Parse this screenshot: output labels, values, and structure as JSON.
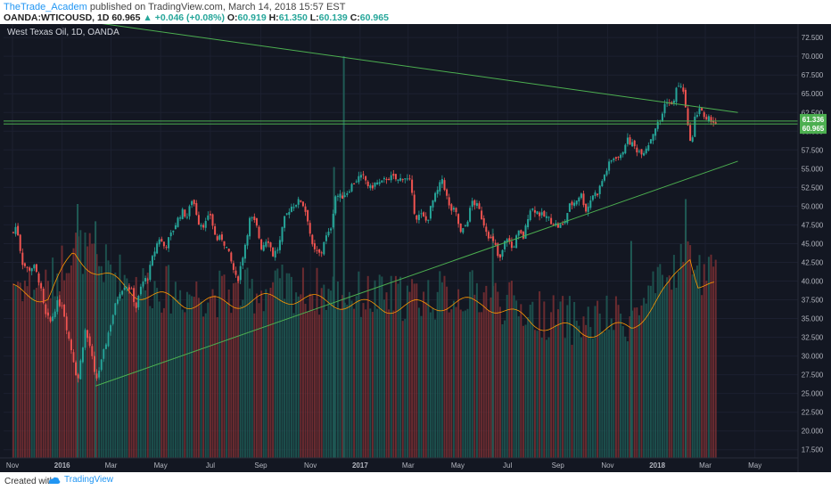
{
  "header": {
    "author": "TheTrade_Academ",
    "published_text": " published on TradingView.com, March 14, 2018 15:57 EST",
    "symbol_line": "OANDA:WTICOUSD, 1D",
    "last": "60.965",
    "change": "+0.046 (+0.08%)",
    "o_label": "O:",
    "o": "60.919",
    "h_label": "H:",
    "h": "61.350",
    "l_label": "L:",
    "l": "60.139",
    "c_label": "C:",
    "c": "60.965"
  },
  "footer": {
    "created": "Created with",
    "brand": "TradingView"
  },
  "colors": {
    "bg": "#131722",
    "up": "#26a69a",
    "down": "#ef5350",
    "line": "#4caf50",
    "ma": "#ff9800",
    "price_tag": "#4caf50"
  },
  "chart_data": {
    "type": "candlestick",
    "title": "West Texas Oil, 1D, OANDA",
    "y_ticks": [
      "72.500",
      "70.000",
      "67.500",
      "65.000",
      "62.500",
      "60.000",
      "57.500",
      "55.000",
      "52.500",
      "50.000",
      "47.500",
      "45.000",
      "42.500",
      "40.000",
      "37.500",
      "35.000",
      "32.500",
      "30.000",
      "27.500",
      "25.000",
      "22.500",
      "20.000",
      "17.500"
    ],
    "price_ylim": [
      16.4,
      74.3
    ],
    "x_ticks": [
      "Nov",
      "2016",
      "Mar",
      "May",
      "Jul",
      "Sep",
      "Nov",
      "2017",
      "Mar",
      "May",
      "Jul",
      "Sep",
      "Nov",
      "2018",
      "Mar",
      "May"
    ],
    "price_tags": [
      "61.336",
      "60.965"
    ],
    "trendlines": [
      {
        "name": "",
        "from": [
          "2015-10-01",
          76.5
        ],
        "to": [
          "2018-04-10",
          62.5
        ]
      },
      {
        "name": "",
        "from": [
          "2016-02-11",
          26.0
        ],
        "to": [
          "2018-04-10",
          56.0
        ]
      }
    ],
    "horizontal_lines": [
      61.35,
      60.97
    ],
    "close_path": [
      [
        "2015-11-02",
        46.5
      ],
      [
        "2015-11-06",
        47.5
      ],
      [
        "2015-11-13",
        42.5
      ],
      [
        "2015-11-20",
        41.5
      ],
      [
        "2015-11-27",
        42.0
      ],
      [
        "2015-12-04",
        40.0
      ],
      [
        "2015-12-11",
        35.5
      ],
      [
        "2015-12-18",
        34.5
      ],
      [
        "2015-12-25",
        37.0
      ],
      [
        "2016-01-01",
        37.0
      ],
      [
        "2016-01-08",
        33.0
      ],
      [
        "2016-01-15",
        29.5
      ],
      [
        "2016-01-20",
        26.5
      ],
      [
        "2016-01-29",
        33.5
      ],
      [
        "2016-02-05",
        31.0
      ],
      [
        "2016-02-11",
        26.5
      ],
      [
        "2016-02-19",
        29.5
      ],
      [
        "2016-02-26",
        32.8
      ],
      [
        "2016-03-04",
        35.8
      ],
      [
        "2016-03-11",
        38.5
      ],
      [
        "2016-03-18",
        39.5
      ],
      [
        "2016-03-25",
        39.0
      ],
      [
        "2016-04-01",
        36.5
      ],
      [
        "2016-04-08",
        39.7
      ],
      [
        "2016-04-15",
        40.5
      ],
      [
        "2016-04-22",
        43.5
      ],
      [
        "2016-04-29",
        45.8
      ],
      [
        "2016-05-06",
        44.5
      ],
      [
        "2016-05-13",
        46.0
      ],
      [
        "2016-05-20",
        47.8
      ],
      [
        "2016-05-27",
        49.3
      ],
      [
        "2016-06-03",
        48.6
      ],
      [
        "2016-06-09",
        51.2
      ],
      [
        "2016-06-17",
        47.8
      ],
      [
        "2016-06-24",
        47.5
      ],
      [
        "2016-07-01",
        48.9
      ],
      [
        "2016-07-08",
        45.5
      ],
      [
        "2016-07-15",
        45.8
      ],
      [
        "2016-07-22",
        44.2
      ],
      [
        "2016-07-29",
        41.7
      ],
      [
        "2016-08-03",
        39.8
      ],
      [
        "2016-08-12",
        44.5
      ],
      [
        "2016-08-19",
        48.5
      ],
      [
        "2016-08-26",
        47.6
      ],
      [
        "2016-09-02",
        44.4
      ],
      [
        "2016-09-09",
        45.9
      ],
      [
        "2016-09-16",
        43.5
      ],
      [
        "2016-09-23",
        44.5
      ],
      [
        "2016-09-30",
        48.2
      ],
      [
        "2016-10-07",
        49.8
      ],
      [
        "2016-10-14",
        50.4
      ],
      [
        "2016-10-21",
        50.8
      ],
      [
        "2016-10-28",
        48.7
      ],
      [
        "2016-11-04",
        44.1
      ],
      [
        "2016-11-14",
        43.5
      ],
      [
        "2016-11-18",
        45.6
      ],
      [
        "2016-11-25",
        46.5
      ],
      [
        "2016-12-02",
        51.5
      ],
      [
        "2016-12-09",
        51.2
      ],
      [
        "2016-12-16",
        51.9
      ],
      [
        "2016-12-23",
        53.0
      ],
      [
        "2016-12-30",
        53.8
      ],
      [
        "2017-01-06",
        53.8
      ],
      [
        "2017-01-13",
        52.3
      ],
      [
        "2017-01-20",
        53.1
      ],
      [
        "2017-01-27",
        53.0
      ],
      [
        "2017-02-03",
        53.8
      ],
      [
        "2017-02-10",
        53.8
      ],
      [
        "2017-02-17",
        53.4
      ],
      [
        "2017-02-24",
        54.0
      ],
      [
        "2017-03-03",
        53.2
      ],
      [
        "2017-03-10",
        48.5
      ],
      [
        "2017-03-17",
        48.8
      ],
      [
        "2017-03-24",
        47.9
      ],
      [
        "2017-03-31",
        50.6
      ],
      [
        "2017-04-07",
        52.2
      ],
      [
        "2017-04-12",
        53.7
      ],
      [
        "2017-04-21",
        49.6
      ],
      [
        "2017-04-28",
        49.3
      ],
      [
        "2017-05-05",
        46.2
      ],
      [
        "2017-05-12",
        47.8
      ],
      [
        "2017-05-19",
        50.7
      ],
      [
        "2017-05-26",
        49.8
      ],
      [
        "2017-06-02",
        47.7
      ],
      [
        "2017-06-09",
        45.8
      ],
      [
        "2017-06-16",
        44.7
      ],
      [
        "2017-06-21",
        42.5
      ],
      [
        "2017-06-30",
        46.0
      ],
      [
        "2017-07-07",
        44.2
      ],
      [
        "2017-07-14",
        46.5
      ],
      [
        "2017-07-21",
        45.8
      ],
      [
        "2017-07-28",
        49.7
      ],
      [
        "2017-08-04",
        49.5
      ],
      [
        "2017-08-11",
        48.8
      ],
      [
        "2017-08-18",
        48.5
      ],
      [
        "2017-08-25",
        47.9
      ],
      [
        "2017-09-01",
        47.3
      ],
      [
        "2017-09-08",
        47.5
      ],
      [
        "2017-09-15",
        50.0
      ],
      [
        "2017-09-22",
        50.6
      ],
      [
        "2017-09-29",
        51.7
      ],
      [
        "2017-10-06",
        49.3
      ],
      [
        "2017-10-13",
        51.5
      ],
      [
        "2017-10-20",
        51.8
      ],
      [
        "2017-10-27",
        53.9
      ],
      [
        "2017-11-03",
        55.6
      ],
      [
        "2017-11-10",
        56.7
      ],
      [
        "2017-11-17",
        56.5
      ],
      [
        "2017-11-24",
        58.9
      ],
      [
        "2017-12-01",
        58.3
      ],
      [
        "2017-12-08",
        57.4
      ],
      [
        "2017-12-15",
        57.3
      ],
      [
        "2017-12-22",
        58.5
      ],
      [
        "2017-12-29",
        60.4
      ],
      [
        "2018-01-05",
        61.5
      ],
      [
        "2018-01-12",
        64.3
      ],
      [
        "2018-01-19",
        63.3
      ],
      [
        "2018-01-26",
        66.2
      ],
      [
        "2018-02-02",
        65.5
      ],
      [
        "2018-02-09",
        59.2
      ],
      [
        "2018-02-14",
        59.0
      ],
      [
        "2018-02-16",
        61.6
      ],
      [
        "2018-02-23",
        63.5
      ],
      [
        "2018-03-01",
        61.0
      ],
      [
        "2018-03-07",
        61.8
      ],
      [
        "2018-03-14",
        60.97
      ]
    ],
    "volume": {
      "ylim": [
        14.7,
        32.3
      ],
      "path": [
        [
          "2015-11-01",
          21.5
        ],
        [
          "2015-12-15",
          21.2
        ],
        [
          "2016-01-15",
          23.0
        ],
        [
          "2016-02-15",
          22.2
        ],
        [
          "2016-04-01",
          21.4
        ],
        [
          "2016-06-01",
          21.0
        ],
        [
          "2016-08-01",
          21.0
        ],
        [
          "2016-10-01",
          21.2
        ],
        [
          "2016-12-01",
          21.0
        ],
        [
          "2017-02-01",
          20.8
        ],
        [
          "2017-04-01",
          20.9
        ],
        [
          "2017-06-01",
          21.0
        ],
        [
          "2017-08-01",
          20.2
        ],
        [
          "2017-10-01",
          19.8
        ],
        [
          "2017-12-01",
          20.0
        ],
        [
          "2018-01-15",
          21.6
        ],
        [
          "2018-02-10",
          23.0
        ],
        [
          "2018-02-20",
          21.8
        ],
        [
          "2018-03-14",
          21.6
        ]
      ],
      "spikes": [
        [
          "2016-01-20",
          25.0
        ],
        [
          "2016-02-11",
          24.3
        ],
        [
          "2016-11-30",
          26.5
        ],
        [
          "2016-12-12",
          31.0
        ],
        [
          "2017-06-13",
          24.0
        ],
        [
          "2017-11-30",
          23.5
        ],
        [
          "2018-02-05",
          25.2
        ]
      ]
    }
  }
}
